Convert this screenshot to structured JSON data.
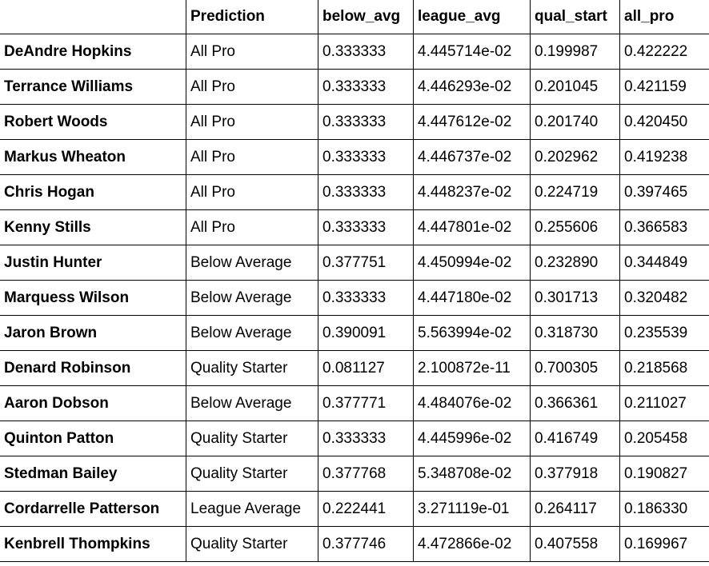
{
  "table": {
    "columns": [
      "",
      "Prediction",
      "below_avg",
      "league_avg",
      "qual_start",
      "all_pro"
    ],
    "rows": [
      [
        "DeAndre Hopkins",
        "All Pro",
        "0.333333",
        "4.445714e-02",
        "0.199987",
        "0.422222"
      ],
      [
        "Terrance Williams",
        "All Pro",
        "0.333333",
        "4.446293e-02",
        "0.201045",
        "0.421159"
      ],
      [
        "Robert Woods",
        "All Pro",
        "0.333333",
        "4.447612e-02",
        "0.201740",
        "0.420450"
      ],
      [
        "Markus Wheaton",
        "All Pro",
        "0.333333",
        "4.446737e-02",
        "0.202962",
        "0.419238"
      ],
      [
        "Chris Hogan",
        "All Pro",
        "0.333333",
        "4.448237e-02",
        "0.224719",
        "0.397465"
      ],
      [
        "Kenny Stills",
        "All Pro",
        "0.333333",
        "4.447801e-02",
        "0.255606",
        "0.366583"
      ],
      [
        "Justin Hunter",
        "Below Average",
        "0.377751",
        "4.450994e-02",
        "0.232890",
        "0.344849"
      ],
      [
        "Marquess Wilson",
        "Below Average",
        "0.333333",
        "4.447180e-02",
        "0.301713",
        "0.320482"
      ],
      [
        "Jaron Brown",
        "Below Average",
        "0.390091",
        "5.563994e-02",
        "0.318730",
        "0.235539"
      ],
      [
        "Denard Robinson",
        "Quality Starter",
        "0.081127",
        "2.100872e-11",
        "0.700305",
        "0.218568"
      ],
      [
        "Aaron Dobson",
        "Below Average",
        "0.377771",
        "4.484076e-02",
        "0.366361",
        "0.211027"
      ],
      [
        "Quinton Patton",
        "Quality Starter",
        "0.333333",
        "4.445996e-02",
        "0.416749",
        "0.205458"
      ],
      [
        "Stedman Bailey",
        "Quality Starter",
        "0.377768",
        "5.348708e-02",
        "0.377918",
        "0.190827"
      ],
      [
        "Cordarrelle Patterson",
        "League Average",
        "0.222441",
        "3.271119e-01",
        "0.264117",
        "0.186330"
      ],
      [
        "Kenbrell Thompkins",
        "Quality Starter",
        "0.377746",
        "4.472866e-02",
        "0.407558",
        "0.169967"
      ]
    ]
  }
}
